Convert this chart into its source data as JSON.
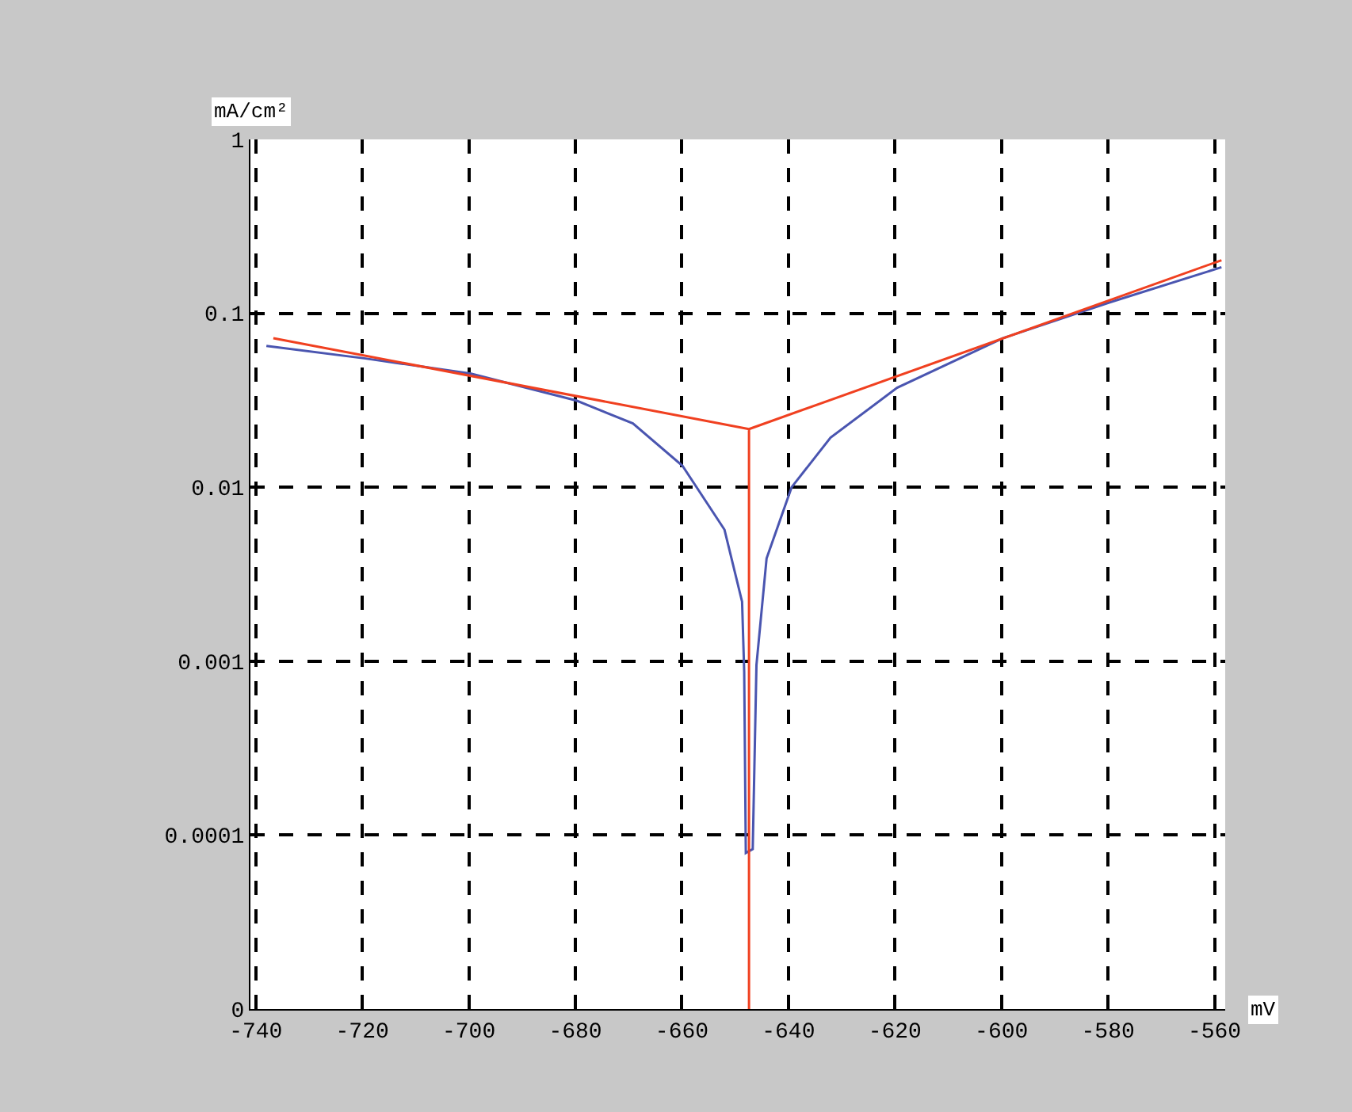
{
  "chart_data": {
    "type": "line",
    "xlabel": "mV",
    "ylabel": "mA/cm²",
    "log": "y",
    "grid": true,
    "marker": "none",
    "line_style": "solid",
    "xlim": [
      -741,
      -558
    ],
    "xticks": [
      -740,
      -720,
      -700,
      -680,
      -660,
      -640,
      -620,
      -600,
      -580,
      -560
    ],
    "ylim": [
      1e-05,
      1
    ],
    "yticks": [
      {
        "value": 1e-05,
        "label": "0"
      },
      0.0001,
      0.001,
      0.01,
      0.1,
      1
    ],
    "series": [
      {
        "color": "#4a55b0",
        "x": [
          -738.0,
          -719.4,
          -699.6,
          -679.8,
          -669.2,
          -659.9,
          -652.0,
          -648.7,
          -648.3,
          -648.0,
          -646.7,
          -646.0,
          -644.1,
          -639.4,
          -632.1,
          -619.6,
          -599.7,
          -579.9,
          -558.7
        ],
        "values": [
          0.065,
          0.055,
          0.045,
          0.0315,
          0.0233,
          0.0133,
          0.0057,
          0.0022,
          0.00087,
          7.9e-05,
          8.3e-05,
          0.00095,
          0.0039,
          0.01,
          0.0193,
          0.0373,
          0.072,
          0.115,
          0.184
        ]
      },
      {
        "color": "#f04020",
        "x": [
          -736.7,
          -647.4,
          -647.4
        ],
        "values": [
          0.072,
          0.0216,
          1e-05
        ]
      },
      {
        "color": "#f04020",
        "x": [
          -647.4,
          -558.7
        ],
        "values": [
          0.0216,
          0.202
        ]
      }
    ]
  }
}
